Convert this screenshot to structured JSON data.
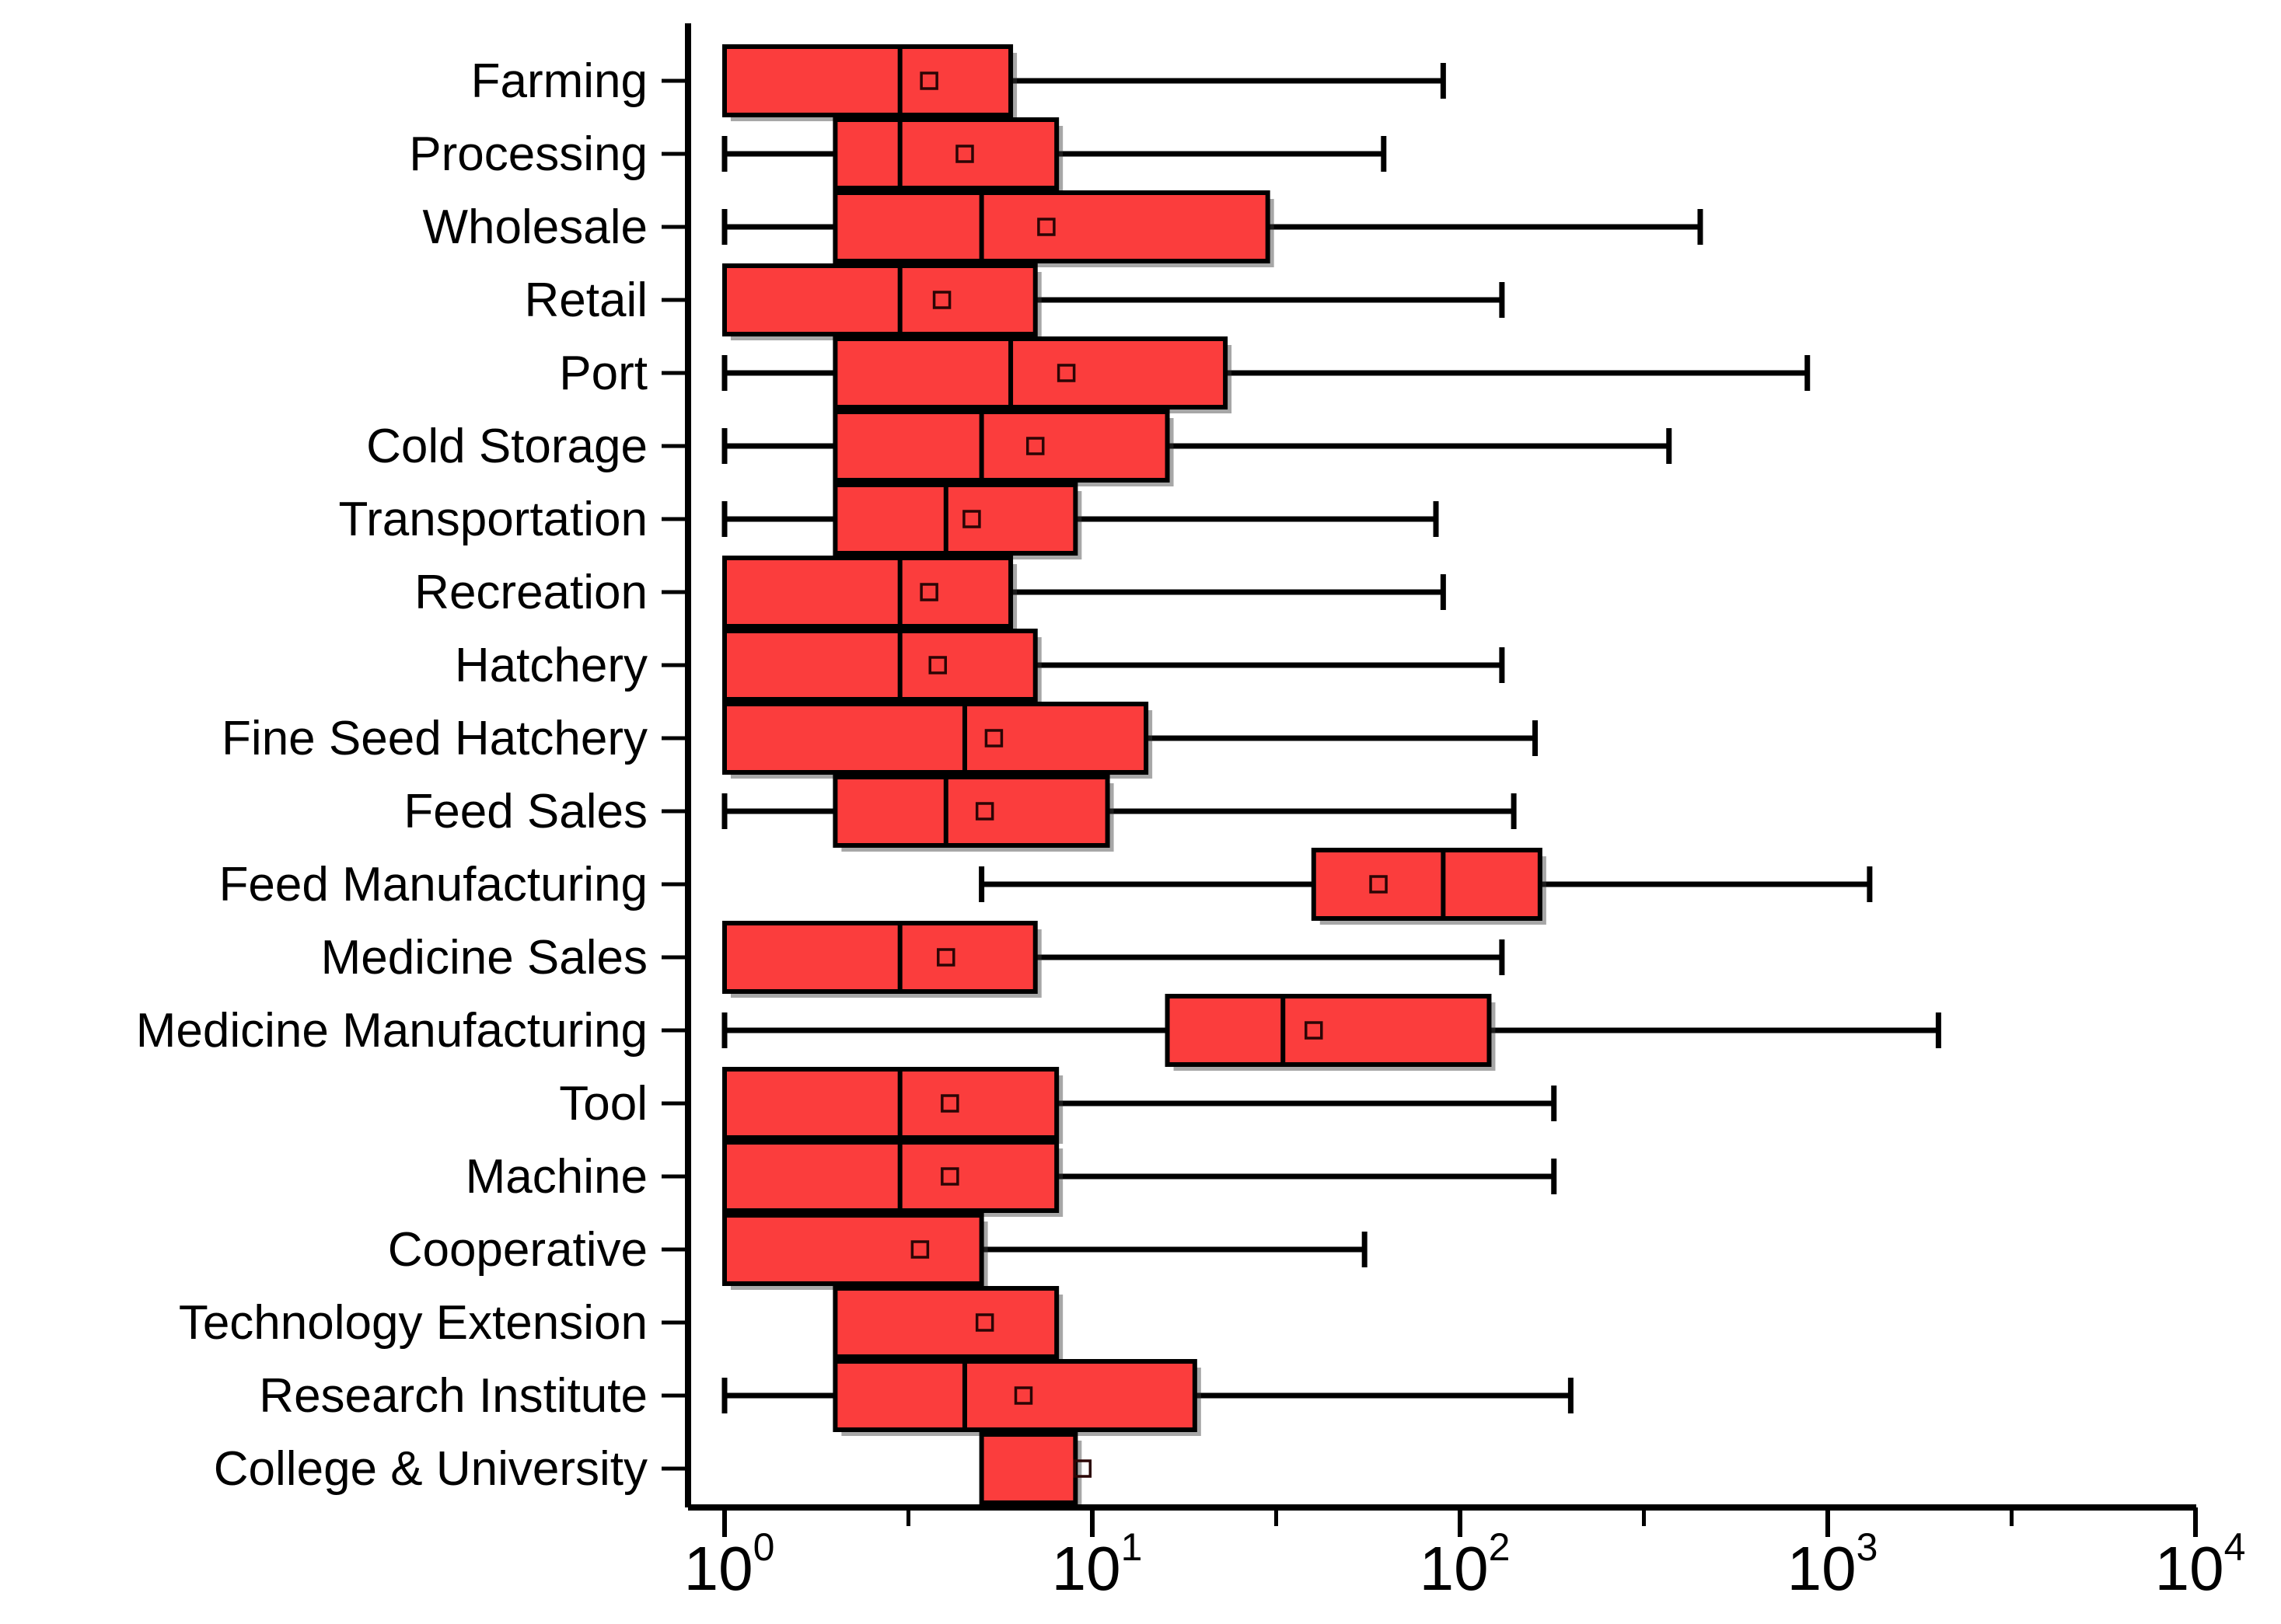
{
  "chart_data": {
    "type": "box",
    "orientation": "horizontal",
    "title": "",
    "xlabel": "",
    "ylabel": "",
    "box_fill_color": "#fb3d3d",
    "box_border_color": "#000000",
    "whisker_color": "#000000",
    "mean_marker": "open-square",
    "x_axis": {
      "scale": "log",
      "min": 1,
      "max": 10000,
      "tick_base": "10",
      "exponents": [
        "0",
        "1",
        "2",
        "3",
        "4"
      ],
      "tick_labels": [
        "10^0",
        "10^1",
        "10^2",
        "10^3",
        "10^4"
      ],
      "minor_ticks_at_half_decade": true
    },
    "categories": [
      {
        "label": "Farming",
        "min": 1,
        "q1": 1,
        "median": 3,
        "q3": 6,
        "max": 90,
        "mean": 3.6
      },
      {
        "label": "Processing",
        "min": 1,
        "q1": 2,
        "median": 3,
        "q3": 8,
        "max": 62,
        "mean": 4.5
      },
      {
        "label": "Wholesale",
        "min": 1,
        "q1": 2,
        "median": 5,
        "q3": 30,
        "max": 450,
        "mean": 7.5
      },
      {
        "label": "Retail",
        "min": 1,
        "q1": 1,
        "median": 3,
        "q3": 7,
        "max": 130,
        "mean": 3.9
      },
      {
        "label": "Port",
        "min": 1,
        "q1": 2,
        "median": 6,
        "q3": 23,
        "max": 880,
        "mean": 8.5
      },
      {
        "label": "Cold Storage",
        "min": 1,
        "q1": 2,
        "median": 5,
        "q3": 16,
        "max": 370,
        "mean": 7
      },
      {
        "label": "Transportation",
        "min": 1,
        "q1": 2,
        "median": 4,
        "q3": 9,
        "max": 86,
        "mean": 4.7
      },
      {
        "label": "Recreation",
        "min": 1,
        "q1": 1,
        "median": 3,
        "q3": 6,
        "max": 90,
        "mean": 3.6
      },
      {
        "label": "Hatchery",
        "min": 1,
        "q1": 1,
        "median": 3,
        "q3": 7,
        "max": 130,
        "mean": 3.8
      },
      {
        "label": "Fine Seed Hatchery",
        "min": 1,
        "q1": 1,
        "median": 4.5,
        "q3": 14,
        "max": 160,
        "mean": 5.4
      },
      {
        "label": "Feed Sales",
        "min": 1,
        "q1": 2,
        "median": 4,
        "q3": 11,
        "max": 140,
        "mean": 5.1
      },
      {
        "label": "Feed Manufacturing",
        "min": 5,
        "q1": 40,
        "median": 90,
        "q3": 165,
        "max": 1300,
        "mean": 60
      },
      {
        "label": "Medicine Sales",
        "min": 1,
        "q1": 1,
        "median": 3,
        "q3": 7,
        "max": 130,
        "mean": 4
      },
      {
        "label": "Medicine Manufacturing",
        "min": 1,
        "q1": 16,
        "median": 33,
        "q3": 120,
        "max": 2000,
        "mean": 40
      },
      {
        "label": "Tool",
        "min": 1,
        "q1": 1,
        "median": 3,
        "q3": 8,
        "max": 180,
        "mean": 4.1
      },
      {
        "label": "Machine",
        "min": 1,
        "q1": 1,
        "median": 3,
        "q3": 8,
        "max": 180,
        "mean": 4.1
      },
      {
        "label": "Cooperative",
        "min": 1,
        "q1": 1,
        "median": null,
        "q3": 5,
        "max": 55,
        "mean": 3.4
      },
      {
        "label": "Technology Extension",
        "min": 2,
        "q1": 2,
        "median": null,
        "q3": 8,
        "max": 8,
        "mean": 5.1
      },
      {
        "label": "Research Institute",
        "min": 1,
        "q1": 2,
        "median": 4.5,
        "q3": 19,
        "max": 200,
        "mean": 6.5
      },
      {
        "label": "College & University",
        "min": 5,
        "q1": 5,
        "median": null,
        "q3": 9,
        "max": 9,
        "mean": 9.4
      }
    ]
  }
}
